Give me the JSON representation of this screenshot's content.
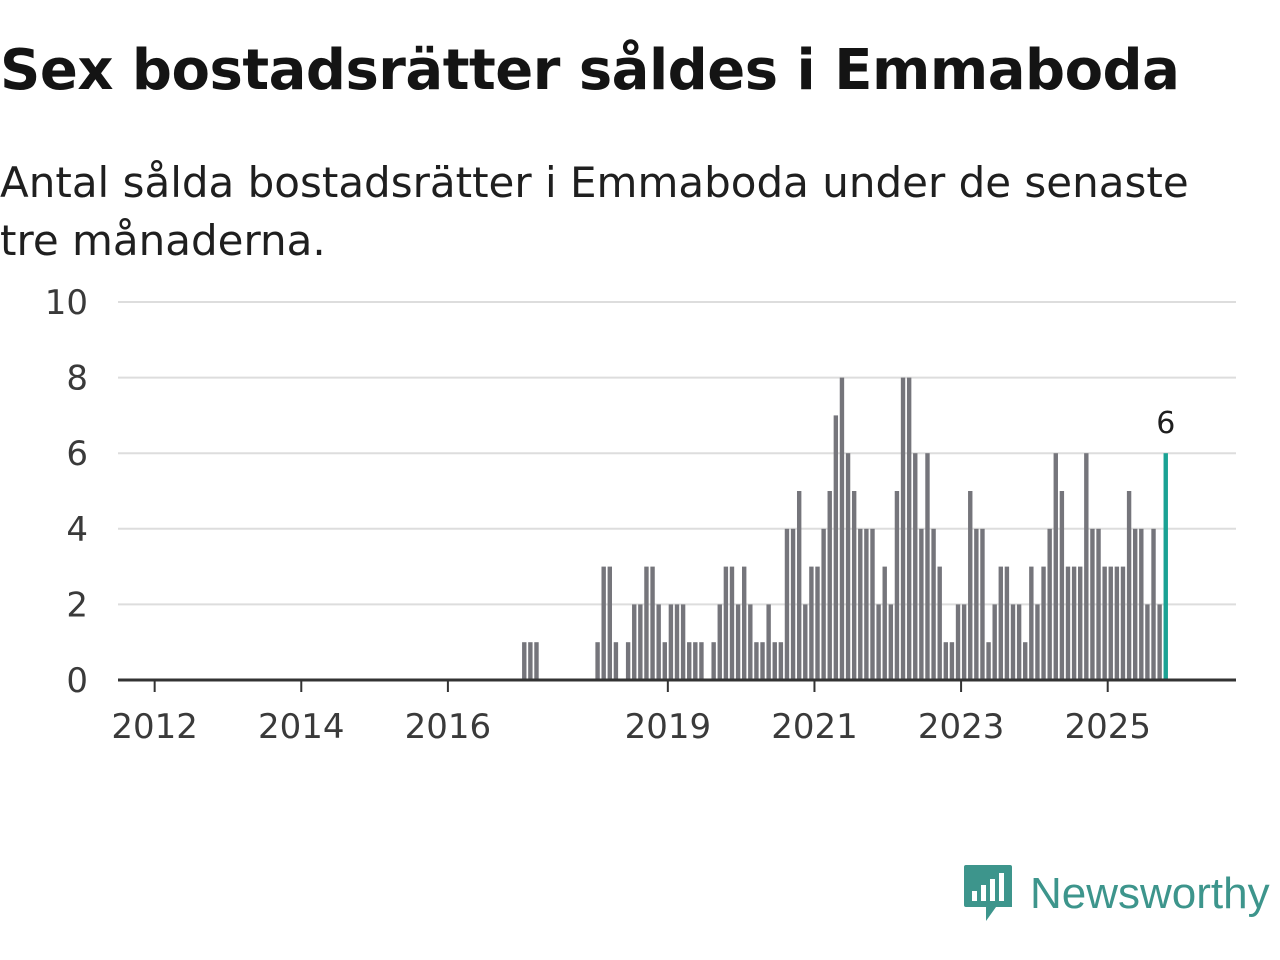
{
  "header": {
    "title": "Sex bostadsrätter såldes i Emmaboda",
    "subtitle": "Antal sålda bostadsrätter i Emmaboda under de senaste tre månaderna."
  },
  "brand": {
    "name": "Newsworthy",
    "icon": "newsworthy-logo-icon"
  },
  "colors": {
    "bar": "#75757b",
    "highlight": "#1aa294",
    "grid": "#dddddd",
    "axis": "#333333",
    "brand": "#3d958c"
  },
  "chart_data": {
    "type": "bar",
    "title": "Sex bostadsrätter såldes i Emmaboda",
    "subtitle": "Antal sålda bostadsrätter i Emmaboda under de senaste tre månaderna.",
    "xlabel": "",
    "ylabel": "",
    "x_range": [
      2011.5,
      2026.75
    ],
    "ylim": [
      0,
      10
    ],
    "y_ticks": [
      0,
      2,
      4,
      6,
      8,
      10
    ],
    "x_ticks": [
      2012,
      2014,
      2016,
      2019,
      2021,
      2023,
      2025
    ],
    "x_tick_labels": [
      "2012",
      "2014",
      "2016",
      "2019",
      "2021",
      "2023",
      "2025"
    ],
    "grid": true,
    "highlight_last": true,
    "last_value_label": "6",
    "months_start": [
      2017,
      1
    ],
    "values": [
      1,
      1,
      1,
      0,
      0,
      0,
      0,
      0,
      0,
      0,
      0,
      0,
      1,
      3,
      3,
      1,
      0,
      1,
      2,
      2,
      3,
      3,
      2,
      1,
      2,
      2,
      2,
      1,
      1,
      1,
      0,
      1,
      2,
      3,
      3,
      2,
      3,
      2,
      1,
      1,
      2,
      1,
      1,
      4,
      4,
      5,
      2,
      3,
      3,
      4,
      5,
      7,
      8,
      6,
      5,
      4,
      4,
      4,
      2,
      3,
      2,
      5,
      8,
      8,
      6,
      4,
      6,
      4,
      3,
      1,
      1,
      2,
      2,
      5,
      4,
      4,
      1,
      2,
      3,
      3,
      2,
      2,
      1,
      3,
      2,
      3,
      4,
      6,
      5,
      3,
      3,
      3,
      6,
      4,
      4,
      3,
      3,
      3,
      3,
      5,
      4,
      4,
      2,
      4,
      2,
      6
    ]
  }
}
